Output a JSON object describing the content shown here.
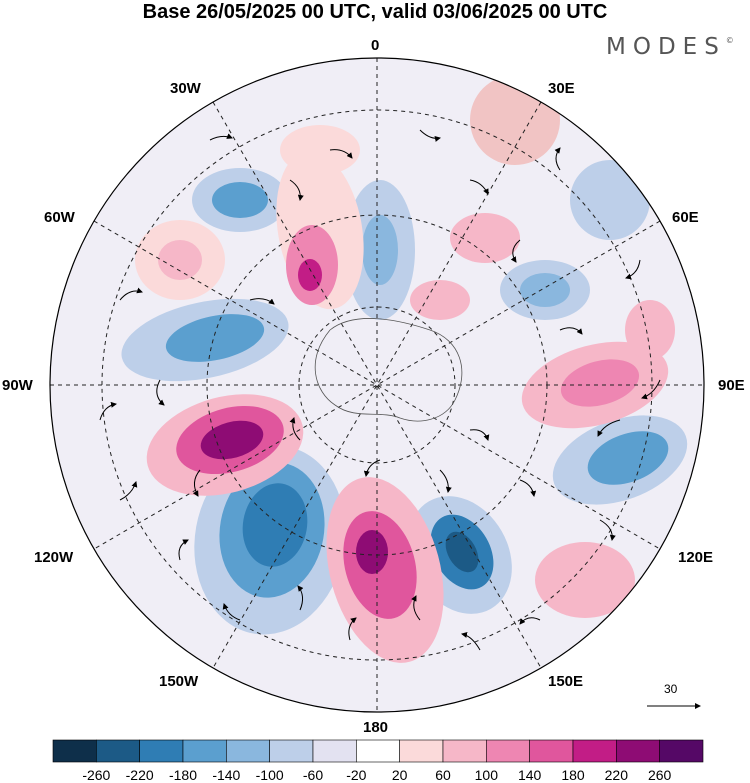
{
  "title": "Base 26/05/2025 00 UTC, valid 03/06/2025 00 UTC",
  "brand": "MODES",
  "brand_mark": "©",
  "map": {
    "projection": "south-polar-stereographic",
    "longitude_labels": {
      "top": "0",
      "bottom": "180",
      "left": "90W",
      "right": "90E",
      "w30": "30W",
      "e30": "30E",
      "w60": "60W",
      "e60": "60E",
      "w120": "120W",
      "e120": "120E",
      "w150": "150W",
      "e150": "150E"
    },
    "vector_reference": "30"
  },
  "colorbar": {
    "colors": [
      "#0e2f4a",
      "#1c5a86",
      "#2f7db4",
      "#5b9fcf",
      "#8ab7de",
      "#bdcfe9",
      "#e3e2f1",
      "#ffffff",
      "#fbdada",
      "#f6b7c8",
      "#ee86b2",
      "#e0569d",
      "#c21d86",
      "#8e0c74",
      "#550866"
    ],
    "tick_labels": [
      "-260",
      "-220",
      "-180",
      "-140",
      "-100",
      "-60",
      "-20",
      "20",
      "60",
      "100",
      "140",
      "180",
      "220",
      "260"
    ]
  }
}
